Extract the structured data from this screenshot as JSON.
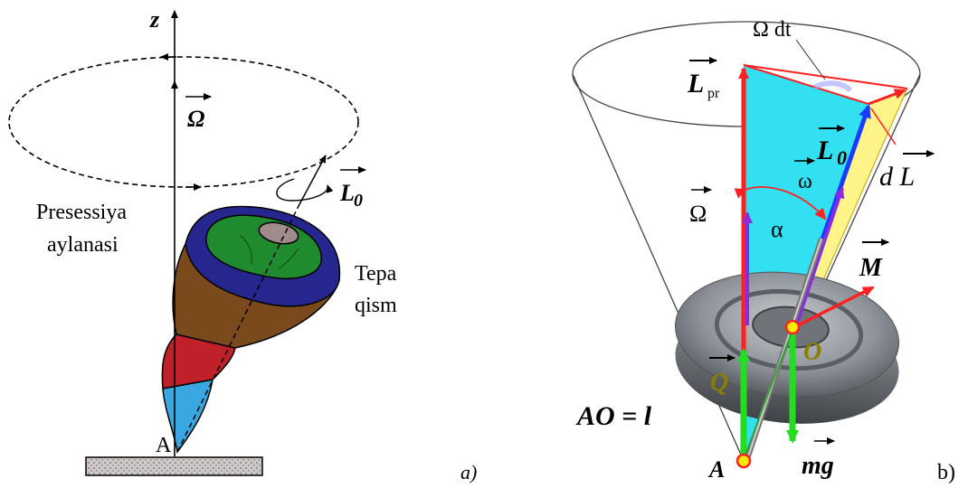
{
  "panel_a": {
    "axis_label": "z",
    "omega_label": "Ω",
    "angular_momentum_label": "L",
    "angular_momentum_sub": "0",
    "precession_text_line1": "Presessiya",
    "precession_text_line2": "aylanasi",
    "top_text_line1": "Tepa",
    "top_text_line2": "qism",
    "pivot_label": "A",
    "caption": "a)"
  },
  "panel_b": {
    "omega_dt_label": "Ω dt",
    "L_pr_label": "L",
    "L_pr_sub": "pr",
    "L0_label": "L",
    "L0_sub": "0",
    "omega_small_label": "ω",
    "dL_label": "d L",
    "Omega_label": "Ω",
    "alpha_label": "α",
    "M_label": "M",
    "Q_label": "Q",
    "O_label": "O",
    "mg_label": "mg",
    "AO_label": "AO = l",
    "A_label": "A",
    "caption": "b)"
  },
  "colors": {
    "top_green": "#1f8a2e",
    "top_blue": "#26268f",
    "top_brown": "#7a4a1c",
    "top_red": "#c0202a",
    "top_cyan": "#3aa8e0",
    "cone_cyan": "#33e0f2",
    "cone_yellow": "#fff48a",
    "arrow_red": "#ff2020",
    "arrow_purple": "#8a2be2",
    "arrow_blue": "#1a3cff",
    "arrow_green": "#22dd22",
    "disk_gray": "#8e939a"
  }
}
